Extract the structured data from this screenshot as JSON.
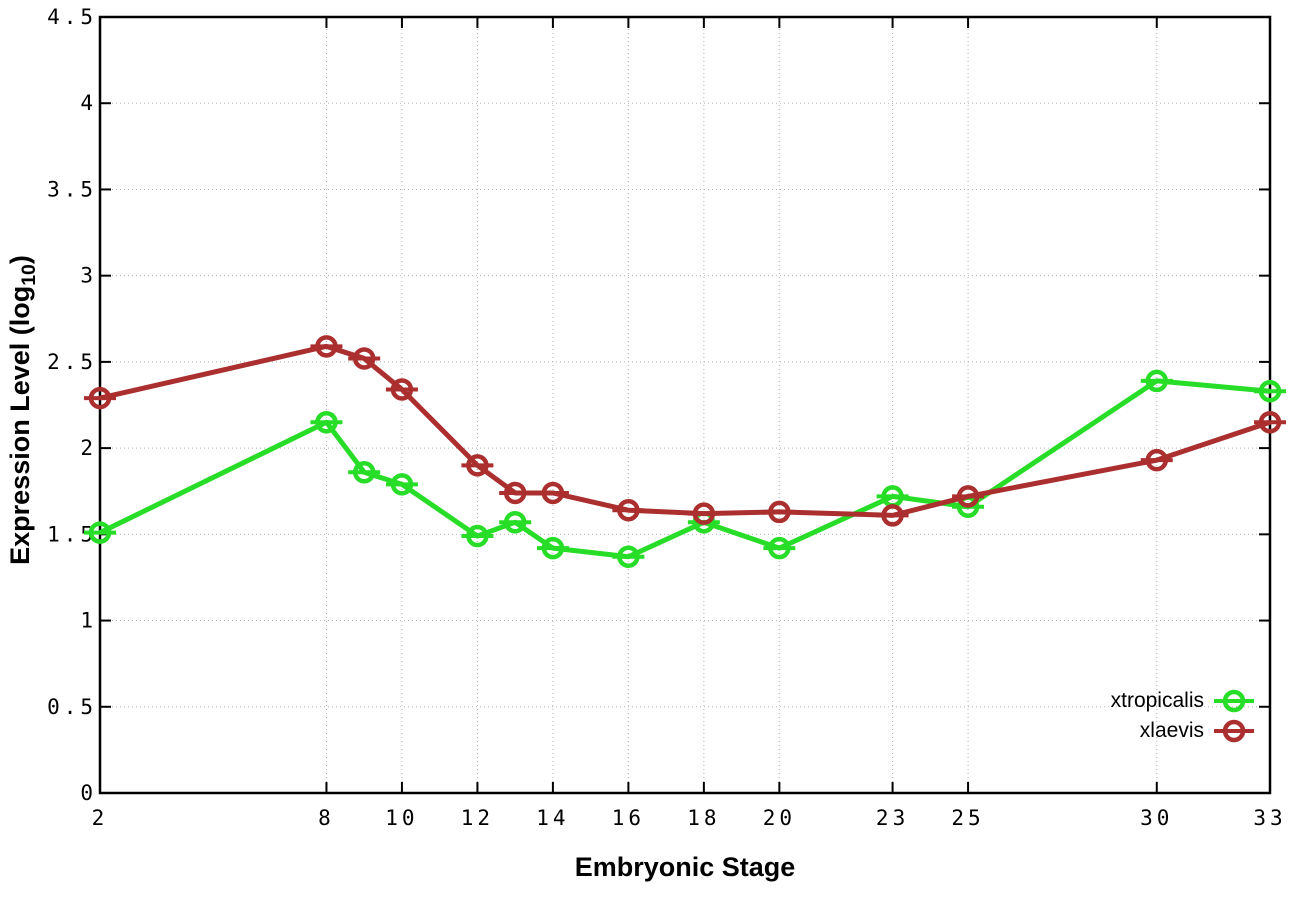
{
  "figure": {
    "background": "#ffffff"
  },
  "chart_data": {
    "type": "line",
    "title": "",
    "xlabel": "Embryonic Stage",
    "ylabel": {
      "main": "Expression Level (log",
      "sub": "10",
      "close": ")"
    },
    "xlim": [
      2,
      33
    ],
    "ylim": [
      0,
      4.5
    ],
    "x_ticks": [
      2,
      8,
      10,
      12,
      14,
      16,
      18,
      20,
      23,
      25,
      30,
      33
    ],
    "y_ticks": [
      0,
      0.5,
      1,
      1.5,
      2,
      2.5,
      3,
      3.5,
      4,
      4.5
    ],
    "grid": "dotted",
    "grid_color": "#b5b5b5",
    "axis_color": "#000000",
    "legend_position": "inside bottom right",
    "marker_style": "open-circle with small y-error bar",
    "x": [
      2,
      8,
      9,
      10,
      12,
      13,
      14,
      16,
      18,
      20,
      23,
      25,
      30,
      33
    ],
    "series": [
      {
        "name": "xtropicalis",
        "color": "#27dd27",
        "values": [
          1.51,
          2.15,
          1.86,
          1.79,
          1.49,
          1.57,
          1.42,
          1.37,
          1.57,
          1.42,
          1.72,
          1.66,
          2.39,
          2.33
        ]
      },
      {
        "name": "xlaevis",
        "color": "#ab2f2f",
        "values": [
          2.29,
          2.59,
          2.52,
          2.34,
          1.9,
          1.74,
          1.74,
          1.64,
          1.62,
          1.63,
          1.61,
          1.72,
          1.93,
          2.15
        ]
      }
    ]
  }
}
